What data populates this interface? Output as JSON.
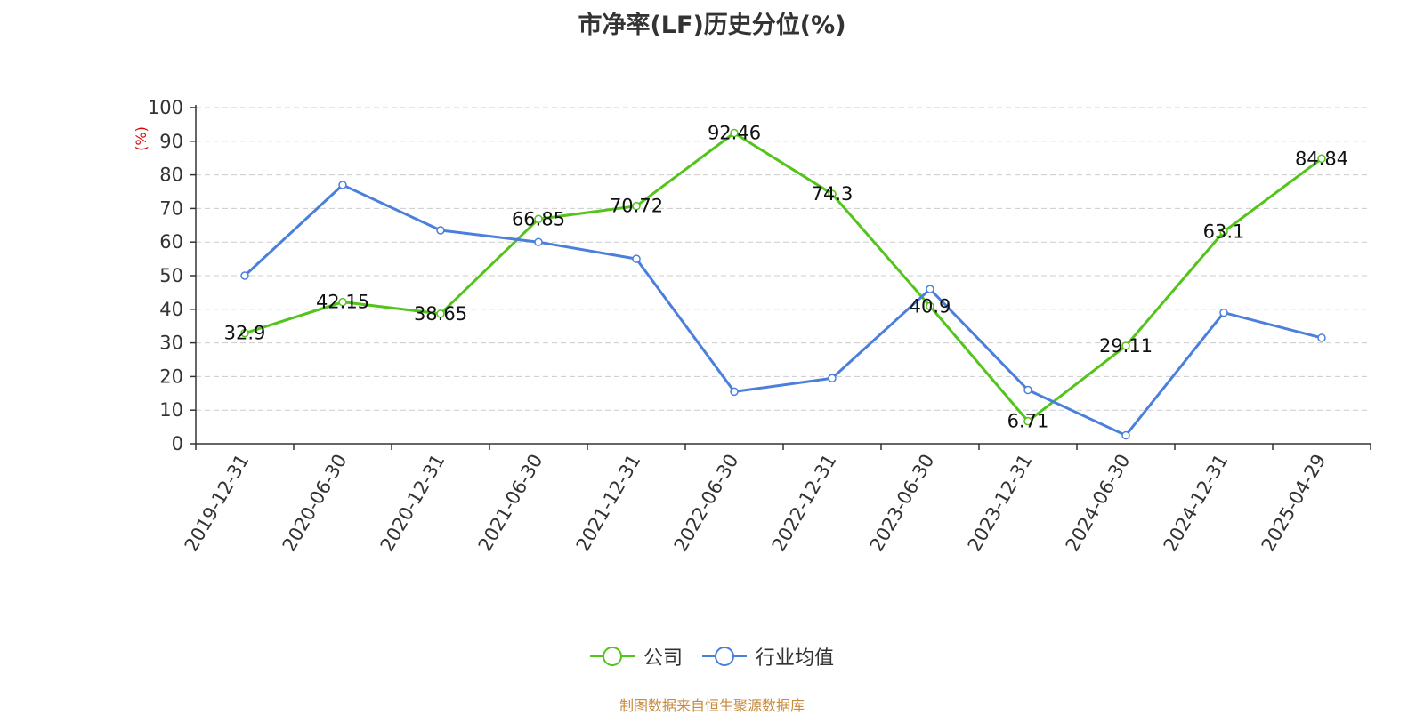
{
  "title": "市净率(LF)历史分位(%)",
  "source_note": "制图数据来自恒生聚源数据库",
  "colors": {
    "company": "#52c41a",
    "industry": "#4a7fdc",
    "unit": "#e00000",
    "grid": "#cccccc",
    "axis": "#333333"
  },
  "chart_data": {
    "type": "line",
    "title": "市净率(LF)历史分位(%)",
    "ylabel": "(%)",
    "ylim": [
      0,
      100
    ],
    "yticks": [
      0,
      10,
      20,
      30,
      40,
      50,
      60,
      70,
      80,
      90,
      100
    ],
    "categories": [
      "2019-12-31",
      "2020-06-30",
      "2020-12-31",
      "2021-06-30",
      "2021-12-31",
      "2022-06-30",
      "2022-12-31",
      "2023-06-30",
      "2023-12-31",
      "2024-06-30",
      "2024-12-31",
      "2025-04-29"
    ],
    "grid": "horizontal dashed",
    "legend_position": "bottom",
    "series": [
      {
        "name": "公司",
        "color": "#52c41a",
        "show_labels": true,
        "values": [
          32.9,
          42.15,
          38.65,
          66.85,
          70.72,
          92.46,
          74.3,
          40.9,
          6.71,
          29.11,
          63.1,
          84.84
        ]
      },
      {
        "name": "行业均值",
        "color": "#4a7fdc",
        "show_labels": false,
        "values": [
          50,
          77,
          63.5,
          60,
          55,
          15.5,
          19.5,
          46,
          16,
          2.5,
          39,
          31.5
        ]
      }
    ]
  }
}
